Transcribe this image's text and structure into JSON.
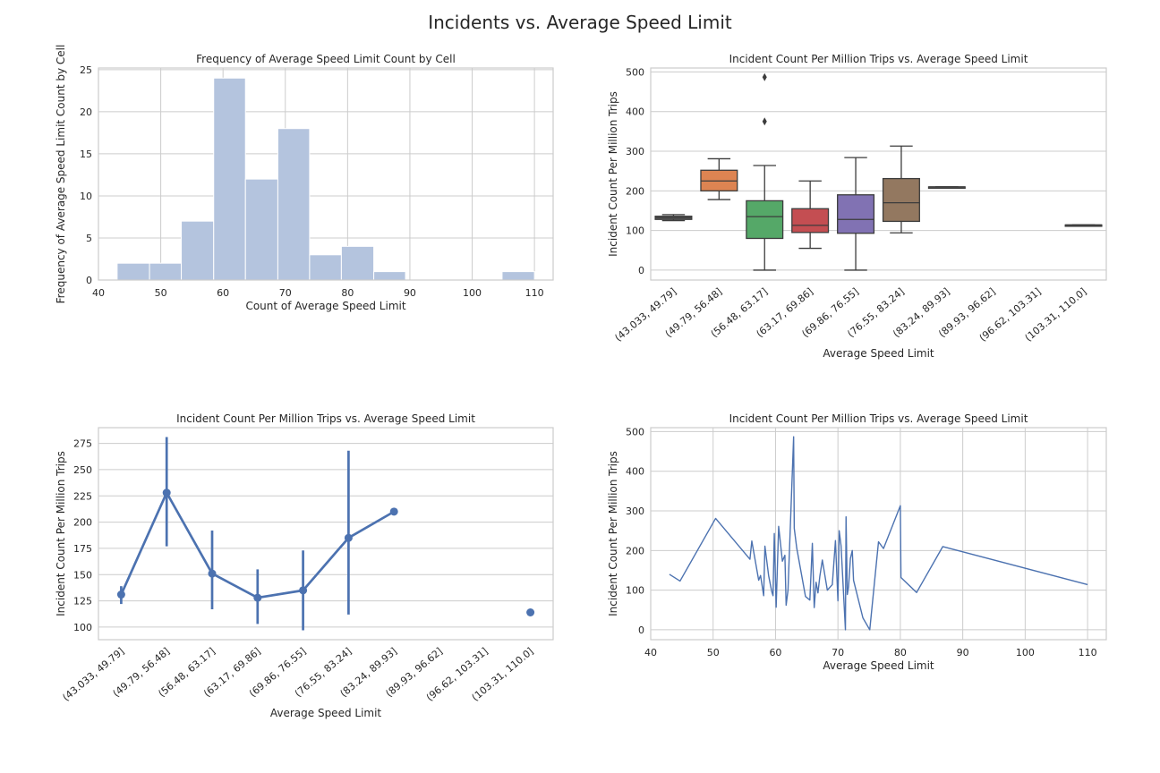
{
  "suptitle": "Incidents vs. Average Speed Limit",
  "colors": {
    "hist": "#b4c4de",
    "grid": "#cccccc",
    "frame": "#cccccc",
    "line": "#4c72b0",
    "box": [
      "#6a6a6a",
      "#dd8452",
      "#55a868",
      "#c44e52",
      "#8172b3",
      "#937860"
    ],
    "whisker": "#3c3c3c"
  },
  "chart_data": [
    {
      "type": "histogram",
      "title": "Frequency of Average Speed Limit Count by Cell",
      "xlabel": "Count of Average Speed Limit",
      "ylabel": "Frequency of Average Speed Limit Count by Cell",
      "xlim": [
        40,
        113
      ],
      "ylim": [
        0,
        25.2
      ],
      "xticks": [
        40,
        50,
        60,
        70,
        80,
        90,
        100,
        110
      ],
      "yticks": [
        0,
        5,
        10,
        15,
        20,
        25
      ],
      "bins": [
        {
          "start": 43.0,
          "end": 48.2,
          "count": 2
        },
        {
          "start": 48.2,
          "end": 53.3,
          "count": 2
        },
        {
          "start": 53.3,
          "end": 58.5,
          "count": 7
        },
        {
          "start": 58.5,
          "end": 63.6,
          "count": 24
        },
        {
          "start": 63.6,
          "end": 68.8,
          "count": 12
        },
        {
          "start": 68.8,
          "end": 73.9,
          "count": 18
        },
        {
          "start": 73.9,
          "end": 79.0,
          "count": 3
        },
        {
          "start": 79.0,
          "end": 84.2,
          "count": 4
        },
        {
          "start": 84.2,
          "end": 89.3,
          "count": 1
        },
        {
          "start": 89.3,
          "end": 94.5,
          "count": 0
        },
        {
          "start": 94.5,
          "end": 99.6,
          "count": 0
        },
        {
          "start": 99.6,
          "end": 104.8,
          "count": 0
        },
        {
          "start": 104.8,
          "end": 110.0,
          "count": 1
        }
      ]
    },
    {
      "type": "box",
      "title": "Incident Count Per Million Trips vs. Average Speed Limit",
      "xlabel": "Average Speed Limit",
      "ylabel": "Incident Count Per Million Trips",
      "ylim": [
        -25,
        510
      ],
      "yticks": [
        0,
        100,
        200,
        300,
        400,
        500
      ],
      "categories": [
        "(43.033, 49.79]",
        "(49.79, 56.48]",
        "(56.48, 63.17]",
        "(63.17, 69.86]",
        "(69.86, 76.55]",
        "(76.55, 83.24]",
        "(83.24, 89.93]",
        "(89.93, 96.62]",
        "(96.62, 103.31]",
        "(103.31, 110.0]"
      ],
      "boxes": [
        {
          "min": 125,
          "q1": 128,
          "median": 132,
          "q3": 136,
          "max": 140,
          "outliers": []
        },
        {
          "min": 178,
          "q1": 200,
          "median": 225,
          "q3": 252,
          "max": 281,
          "outliers": []
        },
        {
          "min": 0,
          "q1": 80,
          "median": 135,
          "q3": 175,
          "max": 264,
          "outliers": [
            375,
            487
          ]
        },
        {
          "min": 55,
          "q1": 95,
          "median": 113,
          "q3": 155,
          "max": 225,
          "outliers": []
        },
        {
          "min": 0,
          "q1": 93,
          "median": 128,
          "q3": 190,
          "max": 284,
          "outliers": []
        },
        {
          "min": 94,
          "q1": 123,
          "median": 170,
          "q3": 231,
          "max": 313,
          "outliers": []
        },
        {
          "min": 210,
          "q1": 210,
          "median": 210,
          "q3": 210,
          "max": 210,
          "outliers": []
        },
        null,
        null,
        {
          "min": 114,
          "q1": 114,
          "median": 114,
          "q3": 114,
          "max": 114,
          "outliers": []
        }
      ]
    },
    {
      "type": "point",
      "title": "Incident Count Per Million Trips vs. Average Speed Limit",
      "xlabel": "Average Speed Limit",
      "ylabel": "Incident Count Per Million Trips",
      "ylim": [
        88,
        290
      ],
      "yticks": [
        100,
        125,
        150,
        175,
        200,
        225,
        250,
        275
      ],
      "categories": [
        "(43.033, 49.79]",
        "(49.79, 56.48]",
        "(56.48, 63.17]",
        "(63.17, 69.86]",
        "(69.86, 76.55]",
        "(76.55, 83.24]",
        "(83.24, 89.93]",
        "(89.93, 96.62]",
        "(96.62, 103.31]",
        "(103.31, 110.0]"
      ],
      "values": [
        131,
        228,
        151,
        128,
        135,
        185,
        210,
        null,
        null,
        114
      ],
      "ci_low": [
        122,
        177,
        117,
        103,
        97,
        112,
        210,
        null,
        null,
        114
      ],
      "ci_high": [
        139,
        281,
        192,
        155,
        173,
        268,
        210,
        null,
        null,
        114
      ]
    },
    {
      "type": "line",
      "title": "Incident Count Per Million Trips vs. Average Speed Limit",
      "xlabel": "Average Speed Limit",
      "ylabel": "Incident Count Per Million Trips",
      "xlim": [
        40,
        113
      ],
      "ylim": [
        -25,
        510
      ],
      "xticks": [
        40,
        50,
        60,
        70,
        80,
        90,
        100,
        110
      ],
      "yticks": [
        0,
        100,
        200,
        300,
        400,
        500
      ],
      "x": [
        43.0,
        44.7,
        50.4,
        55.9,
        56.2,
        57.3,
        57.6,
        58.1,
        58.3,
        58.9,
        59.4,
        59.6,
        59.8,
        60.1,
        60.5,
        61.1,
        61.5,
        61.7,
        62.0,
        62.9,
        63.0,
        63.4,
        64.8,
        65.5,
        65.9,
        66.2,
        66.5,
        66.8,
        67.1,
        67.5,
        68.3,
        69.1,
        69.6,
        70.0,
        70.2,
        70.5,
        71.2,
        71.3,
        71.5,
        71.7,
        72.0,
        72.3,
        72.5,
        74.0,
        75.1,
        76.5,
        77.3,
        80.0,
        80.1,
        82.6,
        86.8,
        110.0
      ],
      "y": [
        140,
        123,
        281,
        178,
        224,
        125,
        137,
        86,
        211,
        136,
        96,
        86,
        243,
        57,
        261,
        173,
        188,
        62,
        100,
        487,
        256,
        206,
        84,
        75,
        218,
        56,
        120,
        93,
        135,
        176,
        100,
        114,
        225,
        73,
        250,
        212,
        0,
        285,
        89,
        108,
        180,
        200,
        125,
        30,
        0,
        222,
        205,
        313,
        132,
        94,
        210,
        114
      ]
    }
  ]
}
